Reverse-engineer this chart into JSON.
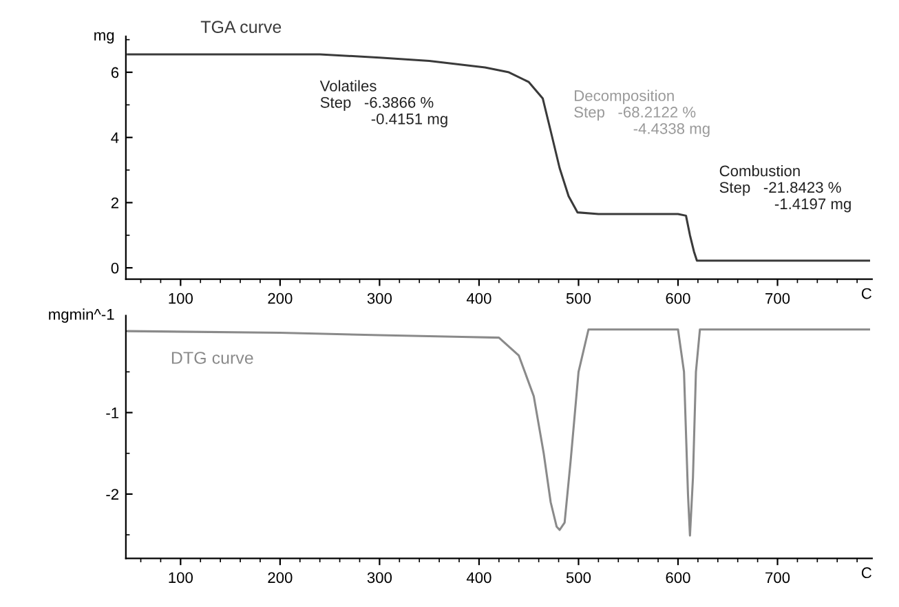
{
  "chart_data": [
    {
      "type": "line",
      "xlabel": "C",
      "ylabel": "mg",
      "xlim": [
        45,
        795
      ],
      "xticks": [
        100,
        200,
        300,
        400,
        500,
        600,
        700
      ],
      "ylim": [
        -0.35,
        7.1
      ],
      "yticks": [
        0,
        2,
        4,
        6
      ],
      "grid": false,
      "legend": false,
      "series": [
        {
          "name": "TGA curve",
          "color": "#3a3a3a",
          "x": [
            47,
            150,
            240,
            300,
            350,
            406,
            430,
            450,
            464,
            472,
            481,
            490,
            499,
            520,
            560,
            600,
            608,
            612,
            616,
            619,
            640,
            700,
            792
          ],
          "values": [
            6.55,
            6.55,
            6.55,
            6.45,
            6.35,
            6.15,
            6.0,
            5.7,
            5.2,
            4.2,
            3.06,
            2.2,
            1.7,
            1.65,
            1.65,
            1.65,
            1.6,
            1.0,
            0.5,
            0.22,
            0.22,
            0.22,
            0.22
          ]
        }
      ],
      "annotations": [
        "Volatiles\nStep   -6.3866 %\n            -0.4151 mg",
        "Decomposition\nStep   -68.2122 %\n              -4.4338 mg",
        "Combustion\nStep   -21.8423 %\n             -1.4197 mg"
      ]
    },
    {
      "type": "line",
      "xlabel": "C",
      "ylabel": "mgmin^-1",
      "xlim": [
        45,
        795
      ],
      "xticks": [
        100,
        200,
        300,
        400,
        500,
        600,
        700
      ],
      "ylim": [
        -2.79,
        0.19
      ],
      "yticks": [
        -1,
        -2
      ],
      "grid": false,
      "legend": false,
      "series": [
        {
          "name": "DTG curve",
          "color": "#8a8a8a",
          "x": [
            47,
            200,
            300,
            383,
            420,
            440,
            455,
            465,
            472,
            478,
            481,
            486,
            492,
            500,
            510,
            560,
            600,
            606,
            610,
            612,
            615,
            618,
            622,
            650,
            792
          ],
          "values": [
            0.0,
            -0.02,
            -0.05,
            -0.07,
            -0.08,
            -0.3,
            -0.8,
            -1.5,
            -2.1,
            -2.4,
            -2.44,
            -2.35,
            -1.6,
            -0.5,
            0.02,
            0.02,
            0.02,
            -0.5,
            -2.0,
            -2.51,
            -1.8,
            -0.5,
            0.02,
            0.02,
            0.02
          ]
        }
      ]
    }
  ]
}
